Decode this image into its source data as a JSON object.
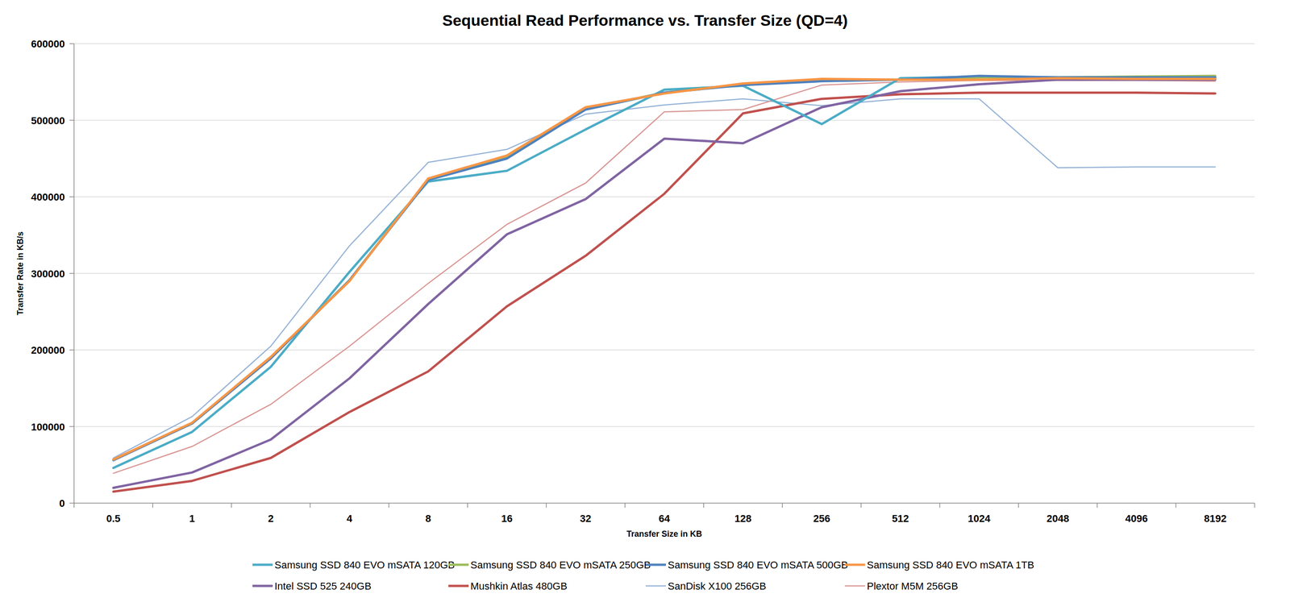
{
  "chart_data": {
    "type": "line",
    "title": "Sequential Read Performance vs. Transfer Size (QD=4)",
    "xlabel": "Transfer Size in KB",
    "ylabel": "Transfer Rate in KB/s",
    "categories": [
      "0.5",
      "1",
      "2",
      "4",
      "8",
      "16",
      "32",
      "64",
      "128",
      "256",
      "512",
      "1024",
      "2048",
      "4096",
      "8192"
    ],
    "ylim": [
      0,
      600000
    ],
    "yticks": [
      0,
      100000,
      200000,
      300000,
      400000,
      500000,
      600000
    ],
    "grid": true,
    "legend": "bottom",
    "series": [
      {
        "name": "Samsung SSD 840 EVO mSATA 120GB",
        "color": "#4bacc6",
        "values": [
          46000,
          93000,
          178000,
          302000,
          420000,
          434000,
          488000,
          540000,
          545000,
          495000,
          555000,
          557000,
          556000,
          556000,
          556000
        ]
      },
      {
        "name": "Samsung SSD 840 EVO mSATA 250GB",
        "color": "#9bbb59",
        "values": [
          57000,
          104000,
          190000,
          291000,
          423000,
          452000,
          515000,
          536000,
          547000,
          553000,
          553000,
          556000,
          556000,
          557000,
          558000
        ]
      },
      {
        "name": "Samsung SSD 840 EVO mSATA 500GB",
        "color": "#4f81bd",
        "values": [
          56000,
          104000,
          189000,
          291000,
          422000,
          450000,
          514000,
          536000,
          546000,
          551000,
          553000,
          558000,
          556000,
          556000,
          556000
        ]
      },
      {
        "name": "Samsung SSD 840 EVO mSATA 1TB",
        "color": "#f79646",
        "values": [
          57000,
          105000,
          191000,
          290000,
          424000,
          454000,
          517000,
          535000,
          548000,
          554000,
          553000,
          553000,
          555000,
          554000,
          554000
        ]
      },
      {
        "name": "Intel SSD 525 240GB",
        "color": "#8064a2",
        "values": [
          20000,
          40000,
          83000,
          163000,
          260000,
          351000,
          397000,
          476000,
          470000,
          517000,
          538000,
          547000,
          553000,
          553000,
          553000
        ]
      },
      {
        "name": "Mushkin Atlas 480GB",
        "color": "#c0504d",
        "values": [
          15000,
          29000,
          59000,
          119000,
          172000,
          257000,
          323000,
          404000,
          509000,
          528000,
          534000,
          536000,
          536000,
          536000,
          535000
        ]
      },
      {
        "name": "SanDisk X100 256GB",
        "color": "#95b3d7",
        "values": [
          59000,
          113000,
          205000,
          336000,
          445000,
          462000,
          508000,
          520000,
          528000,
          519000,
          528000,
          528000,
          438000,
          439000,
          439000
        ]
      },
      {
        "name": "Plextor M5M 256GB",
        "color": "#d99694",
        "values": [
          39000,
          74000,
          129000,
          205000,
          287000,
          364000,
          418000,
          511000,
          514000,
          546000,
          550000,
          552000,
          552000,
          552000,
          551000
        ]
      }
    ]
  }
}
